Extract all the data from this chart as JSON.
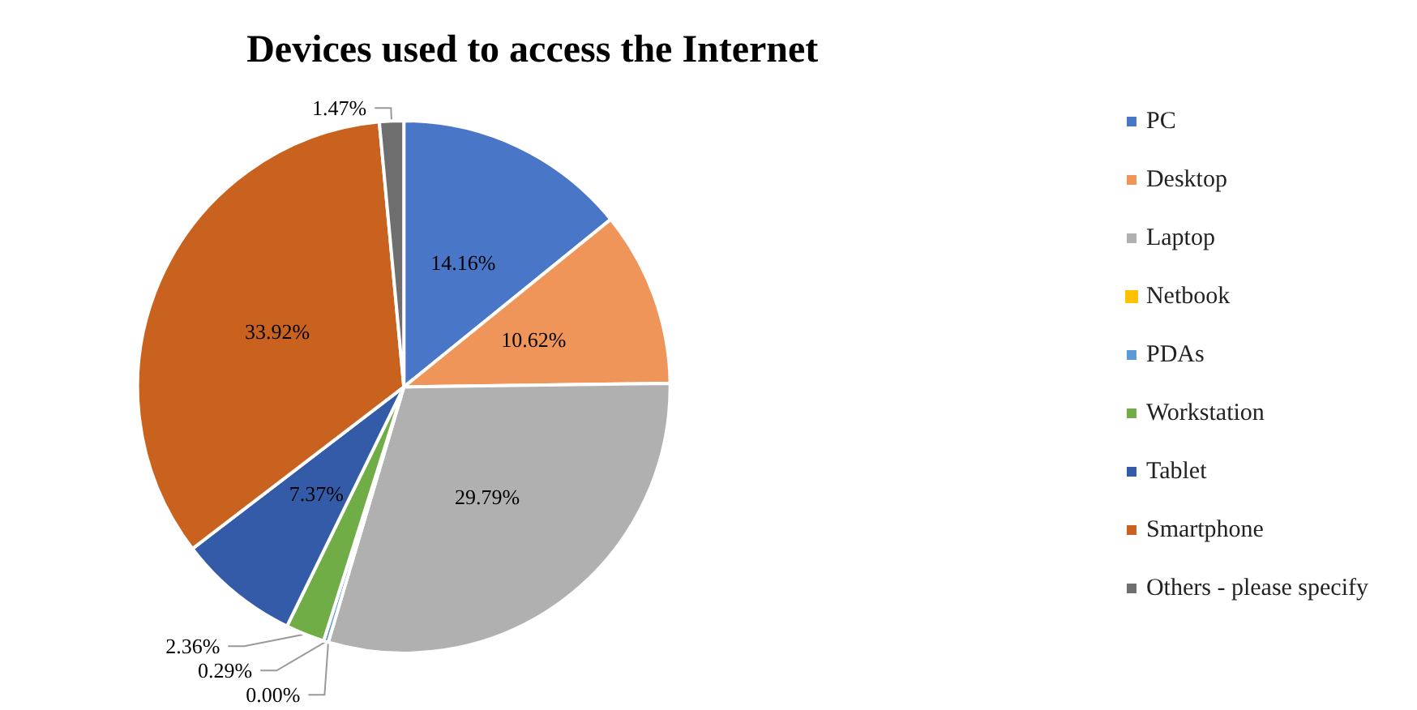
{
  "chart_data": {
    "type": "pie",
    "title": "Devices used to access the Internet",
    "categories": [
      "PC",
      "Desktop",
      "Laptop",
      "Netbook",
      "PDAs",
      "Workstation",
      "Tablet",
      "Smartphone",
      "Others - please specify"
    ],
    "values": [
      14.16,
      10.62,
      29.79,
      0.0,
      0.29,
      2.36,
      7.37,
      33.92,
      1.47
    ],
    "value_labels": [
      "14.16%",
      "10.62%",
      "29.79%",
      "0.00%",
      "0.29%",
      "2.36%",
      "7.37%",
      "33.92%",
      "1.47%"
    ],
    "colors": [
      "#4a76c8",
      "#f0955a",
      "#b0b0b0",
      "#ffc000",
      "#5b9bd5",
      "#70ad47",
      "#345ba8",
      "#c9621f",
      "#6e6e6e"
    ],
    "legend": "right"
  }
}
